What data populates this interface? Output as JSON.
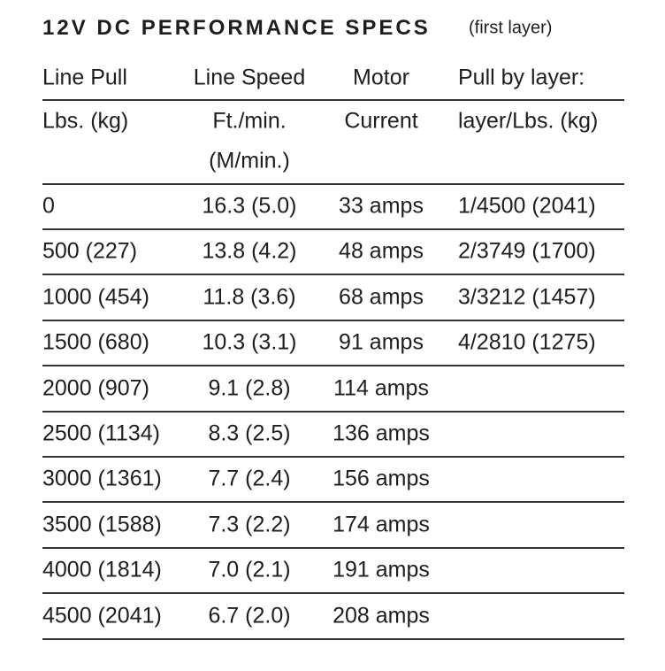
{
  "title": "12V DC PERFORMANCE SPECS",
  "subtitle": "(first layer)",
  "header": {
    "row1": [
      "Line Pull",
      "Line Speed",
      "Motor",
      "Pull by layer:"
    ],
    "row2": [
      "Lbs. (kg)",
      [
        "Ft./min.",
        "(M/min.)"
      ],
      "Current",
      "layer/Lbs. (kg)"
    ]
  },
  "table": {
    "rows": [
      [
        "0",
        "16.3 (5.0)",
        "33 amps",
        "1/4500 (2041)"
      ],
      [
        "500 (227)",
        "13.8 (4.2)",
        "48 amps",
        "2/3749 (1700)"
      ],
      [
        "1000 (454)",
        "11.8 (3.6)",
        "68 amps",
        "3/3212 (1457)"
      ],
      [
        "1500 (680)",
        "10.3 (3.1)",
        "91 amps",
        "4/2810 (1275)"
      ],
      [
        "2000 (907)",
        "9.1 (2.8)",
        "114 amps"
      ],
      [
        "2500 (1134)",
        "8.3 (2.5)",
        "136 amps"
      ],
      [
        "3000 (1361)",
        "7.7 (2.4)",
        "156 amps"
      ],
      [
        "3500 (1588)",
        "7.3 (2.2)",
        "174 amps"
      ],
      [
        "4000 (1814)",
        "7.0 (2.1)",
        "191 amps"
      ],
      [
        "4500 (2041)",
        "6.7 (2.0)",
        "208 amps"
      ]
    ]
  }
}
